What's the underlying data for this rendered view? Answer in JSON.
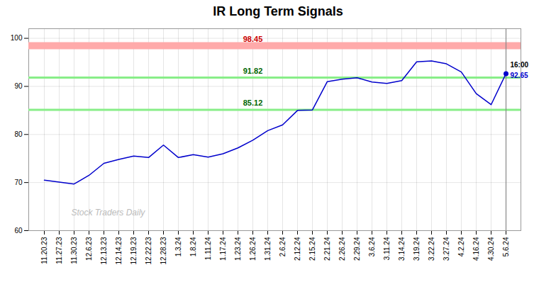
{
  "chart_data": {
    "type": "line",
    "title": "IR Long Term Signals",
    "categories": [
      "11.20.23",
      "11.27.23",
      "11.30.23",
      "12.6.23",
      "12.13.23",
      "12.14.23",
      "12.19.23",
      "12.22.23",
      "12.28.23",
      "1.3.24",
      "1.8.24",
      "1.11.24",
      "1.17.24",
      "1.23.24",
      "1.26.24",
      "1.31.24",
      "2.6.24",
      "2.12.24",
      "2.15.24",
      "2.21.24",
      "2.26.24",
      "2.29.24",
      "3.6.24",
      "3.11.24",
      "3.14.24",
      "3.19.24",
      "3.22.24",
      "3.27.24",
      "4.2.24",
      "4.16.24",
      "4.30.24",
      "5.6.24"
    ],
    "values": [
      70.5,
      70.1,
      69.7,
      71.5,
      74.0,
      74.8,
      75.5,
      75.2,
      77.8,
      75.2,
      75.8,
      75.3,
      76.0,
      77.2,
      78.8,
      80.8,
      82.0,
      85.0,
      85.1,
      91.0,
      91.5,
      91.8,
      90.9,
      90.6,
      91.2,
      95.1,
      95.3,
      94.7,
      93.0,
      88.5,
      86.2,
      92.65
    ],
    "color": "#0000cc",
    "ylim": [
      60,
      102
    ],
    "yticks": [
      60,
      70,
      80,
      90,
      100
    ],
    "grid": true,
    "hlines": [
      {
        "value": 98.45,
        "label": "98.45",
        "color": "#ffaaaa",
        "label_color": "#cc0000"
      },
      {
        "value": 91.82,
        "label": "91.82",
        "color": "#88ee88",
        "label_color": "#006600"
      },
      {
        "value": 85.12,
        "label": "85.12",
        "color": "#88ee88",
        "label_color": "#006600"
      }
    ],
    "annotations": [
      {
        "label": "16:00"
      },
      {
        "label": "92.65",
        "value": 92.65
      }
    ],
    "watermark": "Stock Traders Daily"
  }
}
